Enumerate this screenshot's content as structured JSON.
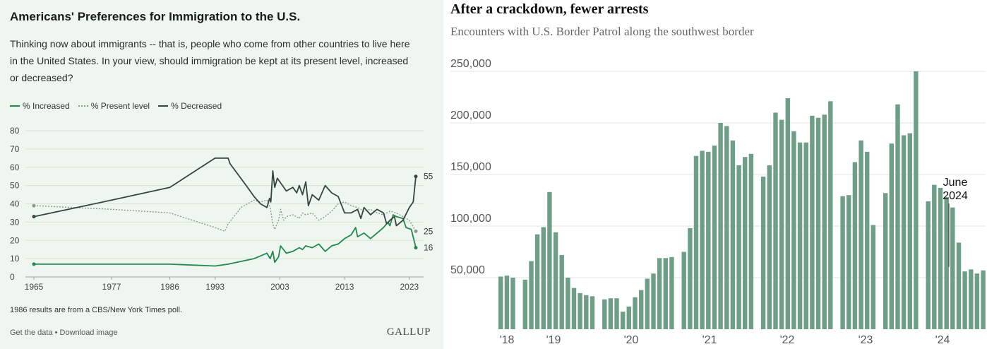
{
  "colors": {
    "increased": "#21884e",
    "present": "#8a9a8f",
    "decreased": "#34473f",
    "bars": "#6e9e86",
    "gallup_bg": "#eef6ef"
  },
  "gallup": {
    "title": "Americans' Preferences for Immigration to the U.S.",
    "subtitle": "Thinking now about immigrants -- that is, people who come from other countries to live here in the United States. In your view, should immigration be kept at its present level, increased or decreased?",
    "note": "1986 results are from a CBS/New York Times poll.",
    "footer": "Get the data • Download image",
    "brand": "GALLUP"
  },
  "nyt": {
    "title": "After a crackdown, fewer arrests",
    "subtitle": "Encounters with U.S. Border Patrol along the southwest border"
  },
  "chart_data": [
    {
      "type": "line",
      "xlim": [
        1965,
        2024
      ],
      "ylim": [
        0,
        80
      ],
      "x_ticks": [
        "1965",
        "1977",
        "1986",
        "1993",
        "2003",
        "2013",
        "2023"
      ],
      "y_ticks": [
        "0",
        "10",
        "20",
        "30",
        "40",
        "50",
        "60",
        "70",
        "80"
      ],
      "grid": true,
      "legend_position": "top-left",
      "series": [
        {
          "name": "% Increased",
          "style": "solid",
          "end_label": "16",
          "points": [
            [
              1965,
              7
            ],
            [
              1977,
              7
            ],
            [
              1986,
              7
            ],
            [
              1993,
              6
            ],
            [
              1995,
              7
            ],
            [
              1999,
              10
            ],
            [
              2001,
              13
            ],
            [
              2001.5,
              10
            ],
            [
              2001.9,
              14
            ],
            [
              2002.2,
              8
            ],
            [
              2002.8,
              11
            ],
            [
              2003.1,
              17
            ],
            [
              2004,
              13
            ],
            [
              2005,
              14
            ],
            [
              2006,
              16
            ],
            [
              2006.5,
              15
            ],
            [
              2007,
              17
            ],
            [
              2008,
              16
            ],
            [
              2009,
              18
            ],
            [
              2010,
              14
            ],
            [
              2011,
              17
            ],
            [
              2012,
              18
            ],
            [
              2013,
              21
            ],
            [
              2014,
              23
            ],
            [
              2014.7,
              27
            ],
            [
              2015,
              22
            ],
            [
              2016,
              24
            ],
            [
              2017,
              21
            ],
            [
              2018,
              24
            ],
            [
              2019,
              27
            ],
            [
              2019.7,
              30
            ],
            [
              2020,
              28
            ],
            [
              2020.5,
              34
            ],
            [
              2021,
              33
            ],
            [
              2022,
              32
            ],
            [
              2022.5,
              27
            ],
            [
              2023.3,
              26
            ],
            [
              2024,
              16
            ]
          ]
        },
        {
          "name": "% Present level",
          "style": "dotted",
          "end_label": "25",
          "points": [
            [
              1965,
              39
            ],
            [
              1977,
              37
            ],
            [
              1986,
              35
            ],
            [
              1993,
              27
            ],
            [
              1994.5,
              25
            ],
            [
              1995,
              29
            ],
            [
              1997,
              38
            ],
            [
              1999,
              42
            ],
            [
              2000,
              41
            ],
            [
              2001,
              42
            ],
            [
              2001.5,
              38
            ],
            [
              2001.9,
              29
            ],
            [
              2002.2,
              26
            ],
            [
              2002.8,
              31
            ],
            [
              2003.1,
              37
            ],
            [
              2003.6,
              31
            ],
            [
              2004,
              33
            ],
            [
              2005,
              34
            ],
            [
              2006,
              32
            ],
            [
              2006.5,
              35
            ],
            [
              2007,
              34
            ],
            [
              2008,
              35
            ],
            [
              2009,
              31
            ],
            [
              2010,
              33
            ],
            [
              2011,
              36
            ],
            [
              2012,
              40
            ],
            [
              2013,
              41
            ],
            [
              2014,
              39
            ],
            [
              2015,
              38
            ],
            [
              2016,
              36
            ],
            [
              2017,
              37
            ],
            [
              2018,
              35
            ],
            [
              2019,
              34
            ],
            [
              2020,
              36
            ],
            [
              2021,
              35
            ],
            [
              2022,
              33
            ],
            [
              2023,
              31
            ],
            [
              2024,
              25
            ]
          ]
        },
        {
          "name": "% Decreased",
          "style": "solid",
          "end_label": "55",
          "points": [
            [
              1965,
              33
            ],
            [
              1977,
              42
            ],
            [
              1986,
              49
            ],
            [
              1993,
              65
            ],
            [
              1995,
              65
            ],
            [
              1995.3,
              62
            ],
            [
              1998,
              49
            ],
            [
              1999,
              44
            ],
            [
              2000,
              40
            ],
            [
              2001,
              38
            ],
            [
              2001.4,
              43
            ],
            [
              2001.6,
              41
            ],
            [
              2001.9,
              58
            ],
            [
              2002.2,
              49
            ],
            [
              2002.6,
              54
            ],
            [
              2003,
              52
            ],
            [
              2004,
              47
            ],
            [
              2005,
              49
            ],
            [
              2005.6,
              46
            ],
            [
              2006,
              50
            ],
            [
              2006.5,
              45
            ],
            [
              2007,
              52
            ],
            [
              2007.4,
              39
            ],
            [
              2008,
              45
            ],
            [
              2009,
              42
            ],
            [
              2010,
              50
            ],
            [
              2011,
              46
            ],
            [
              2012,
              44
            ],
            [
              2013,
              35
            ],
            [
              2014,
              35
            ],
            [
              2015,
              37
            ],
            [
              2015.5,
              32
            ],
            [
              2016,
              38
            ],
            [
              2017,
              34
            ],
            [
              2018,
              37
            ],
            [
              2019,
              35
            ],
            [
              2019.5,
              29
            ],
            [
              2020,
              31
            ],
            [
              2020.7,
              33
            ],
            [
              2021,
              28
            ],
            [
              2022,
              31
            ],
            [
              2023,
              38
            ],
            [
              2023.6,
              41
            ],
            [
              2024,
              55
            ]
          ]
        }
      ]
    },
    {
      "type": "bar",
      "ylim": [
        0,
        250000
      ],
      "y_ticks": [
        "50,000",
        "100,000",
        "150,000",
        "200,000",
        "250,000"
      ],
      "x_labels": [
        "'18",
        "'19",
        "'20",
        "'21",
        "'22",
        "'23",
        "'24"
      ],
      "grid": true,
      "annotation": {
        "line1": "June",
        "line2": "2024"
      },
      "values": [
        51000,
        52000,
        50000,
        0,
        48000,
        66000,
        92000,
        99000,
        133000,
        94000,
        72000,
        50000,
        40000,
        35000,
        33000,
        32000,
        0,
        29000,
        30000,
        30000,
        17000,
        22000,
        31000,
        38000,
        49000,
        54000,
        69000,
        69000,
        70000,
        0,
        75000,
        98000,
        168000,
        173000,
        172000,
        178000,
        200000,
        197000,
        183000,
        159000,
        167000,
        170000,
        0,
        148000,
        159000,
        210000,
        203000,
        224000,
        192000,
        181000,
        181000,
        207000,
        205000,
        208000,
        221000,
        0,
        129000,
        130000,
        162000,
        183000,
        172000,
        101000,
        0,
        132000,
        180000,
        218000,
        188000,
        190000,
        250000,
        0,
        124000,
        140000,
        137000,
        128000,
        118000,
        84000,
        56000,
        58000,
        54000,
        57000
      ]
    }
  ]
}
